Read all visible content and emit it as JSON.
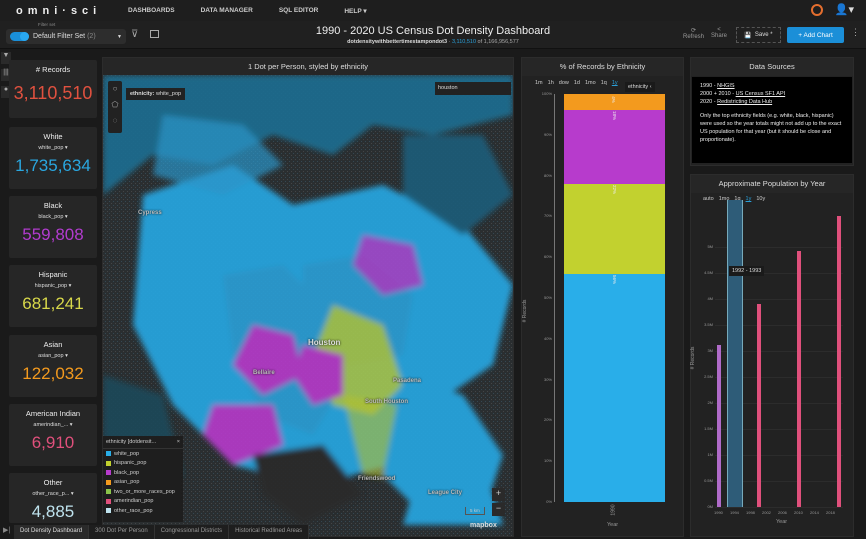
{
  "nav": {
    "logo": "omni·sci",
    "items": [
      "DASHBOARDS",
      "DATA MANAGER",
      "SQL EDITOR",
      "HELP ▾"
    ]
  },
  "filter": {
    "label": "Filter set",
    "value": "Default Filter Set",
    "count": "(2)"
  },
  "header": {
    "title": "1990 - 2020 US Census Dot Density Dashboard",
    "table": "dotdensitywithbettertimestampondot3",
    "filtered": "3,110,510",
    "of": "of 1,166,956,577",
    "refresh": "Refresh",
    "share": "Share",
    "save": "Save *",
    "add_chart": "+ Add Chart"
  },
  "kpis": [
    {
      "title": "# Records",
      "value": "3,110,510",
      "color": "#e0513f"
    },
    {
      "title": "White",
      "field": "white_pop ▾",
      "value": "1,735,634",
      "color": "#2aa7e0"
    },
    {
      "title": "Black",
      "field": "black_pop ▾",
      "value": "559,808",
      "color": "#b23ccf"
    },
    {
      "title": "Hispanic",
      "field": "hispanic_pop ▾",
      "value": "681,241",
      "color": "#d8d84a"
    },
    {
      "title": "Asian",
      "field": "asian_pop ▾",
      "value": "122,032",
      "color": "#f39a1e"
    },
    {
      "title": "American Indian",
      "field": "amerindian_... ▾",
      "value": "6,910",
      "color": "#e0507c"
    },
    {
      "title": "Other",
      "field": "other_race_p... ▾",
      "value": "4,885",
      "color": "#bfe3ee"
    }
  ],
  "map": {
    "title": "1 Dot per Person, styled by ethnicity",
    "tooltip_key": "ethnicity:",
    "tooltip_val": "white_pop",
    "search": "houston",
    "labels": [
      "Houston",
      "Cypress",
      "Pasadena",
      "Friendswood",
      "League City",
      "Bellaire",
      "South Houston"
    ],
    "scale": "5 km",
    "attribution": "mapbox",
    "legend": {
      "title": "ethnicity [dotdensit...",
      "close": "×",
      "items": [
        {
          "label": "white_pop",
          "color": "#29aee9"
        },
        {
          "label": "hispanic_pop",
          "color": "#c2d12f"
        },
        {
          "label": "black_pop",
          "color": "#b73bcc"
        },
        {
          "label": "asian_pop",
          "color": "#f39a1e"
        },
        {
          "label": "two_or_more_races_pop",
          "color": "#8ac44a"
        },
        {
          "label": "amerindian_pop",
          "color": "#e0507c"
        },
        {
          "label": "other_race_pop",
          "color": "#bfe3ee"
        }
      ]
    }
  },
  "ethnicity_chart": {
    "title": "% of Records by Ethnicity",
    "bins": [
      "1m",
      "1h",
      "dow",
      "1d",
      "1mo",
      "1q",
      "1y"
    ],
    "active_bin": "1y",
    "legend_btn": "ethnicity",
    "xlabel": "Year",
    "ylabel": "# Records",
    "xtick": "1990",
    "yticks": [
      "0%",
      "10%",
      "20%",
      "30%",
      "40%",
      "50%",
      "60%",
      "70%",
      "80%",
      "90%",
      "100%"
    ],
    "segments": [
      {
        "name": "white_pop",
        "pct": 56,
        "label": "56%",
        "color": "#29aee9"
      },
      {
        "name": "hispanic_pop",
        "pct": 22,
        "label": "22%",
        "color": "#c2d12f"
      },
      {
        "name": "black_pop",
        "pct": 18,
        "label": "18%",
        "color": "#b73bcc"
      },
      {
        "name": "asian_pop",
        "pct": 4,
        "label": "4%",
        "color": "#f39a1e"
      }
    ]
  },
  "data_sources": {
    "title": "Data Sources",
    "lines": [
      {
        "pre": "1990 - ",
        "link": "NHGIS"
      },
      {
        "pre": "2000 + 2010 - ",
        "link": "US Census SF1 API"
      },
      {
        "pre": "2020 - ",
        "link": "Redistricting Data Hub"
      }
    ],
    "note": "Only the top ethnicity fields (e.g. white, black, hispanic) were used so the year totals might not add up to the exact US population for that year (but it should be close and proportionate)."
  },
  "pop_chart": {
    "title": "Approximate Population by Year",
    "bins": [
      "auto",
      "1mo",
      "1q",
      "1y",
      "10y"
    ],
    "active_bin": "1y",
    "xlabel": "Year",
    "ylabel": "# Records",
    "tooltip": "1992 - 1993",
    "yticks": [
      "0M",
      "0.5M",
      "1M",
      "1.5M",
      "2M",
      "2.5M",
      "3M",
      "3.5M",
      "4M",
      "4.5M",
      "5M"
    ],
    "xticks": [
      "1990",
      "1994",
      "1998",
      "2002",
      "2006",
      "2010",
      "2014",
      "2018"
    ],
    "bars": [
      {
        "year": 1990,
        "value": 3.11,
        "color": "#b06bc9"
      },
      {
        "year": 2000,
        "value": 3.9,
        "color": "#e0507c"
      },
      {
        "year": 2010,
        "value": 4.92,
        "color": "#e0507c"
      },
      {
        "year": 2020,
        "value": 5.6,
        "color": "#e0507c"
      }
    ],
    "brush": [
      1992,
      1996
    ]
  },
  "tabs": [
    "Dot Density Dashboard",
    "300 Dot Per Person",
    "Congressional Districts",
    "Historical Redlined Areas"
  ]
}
